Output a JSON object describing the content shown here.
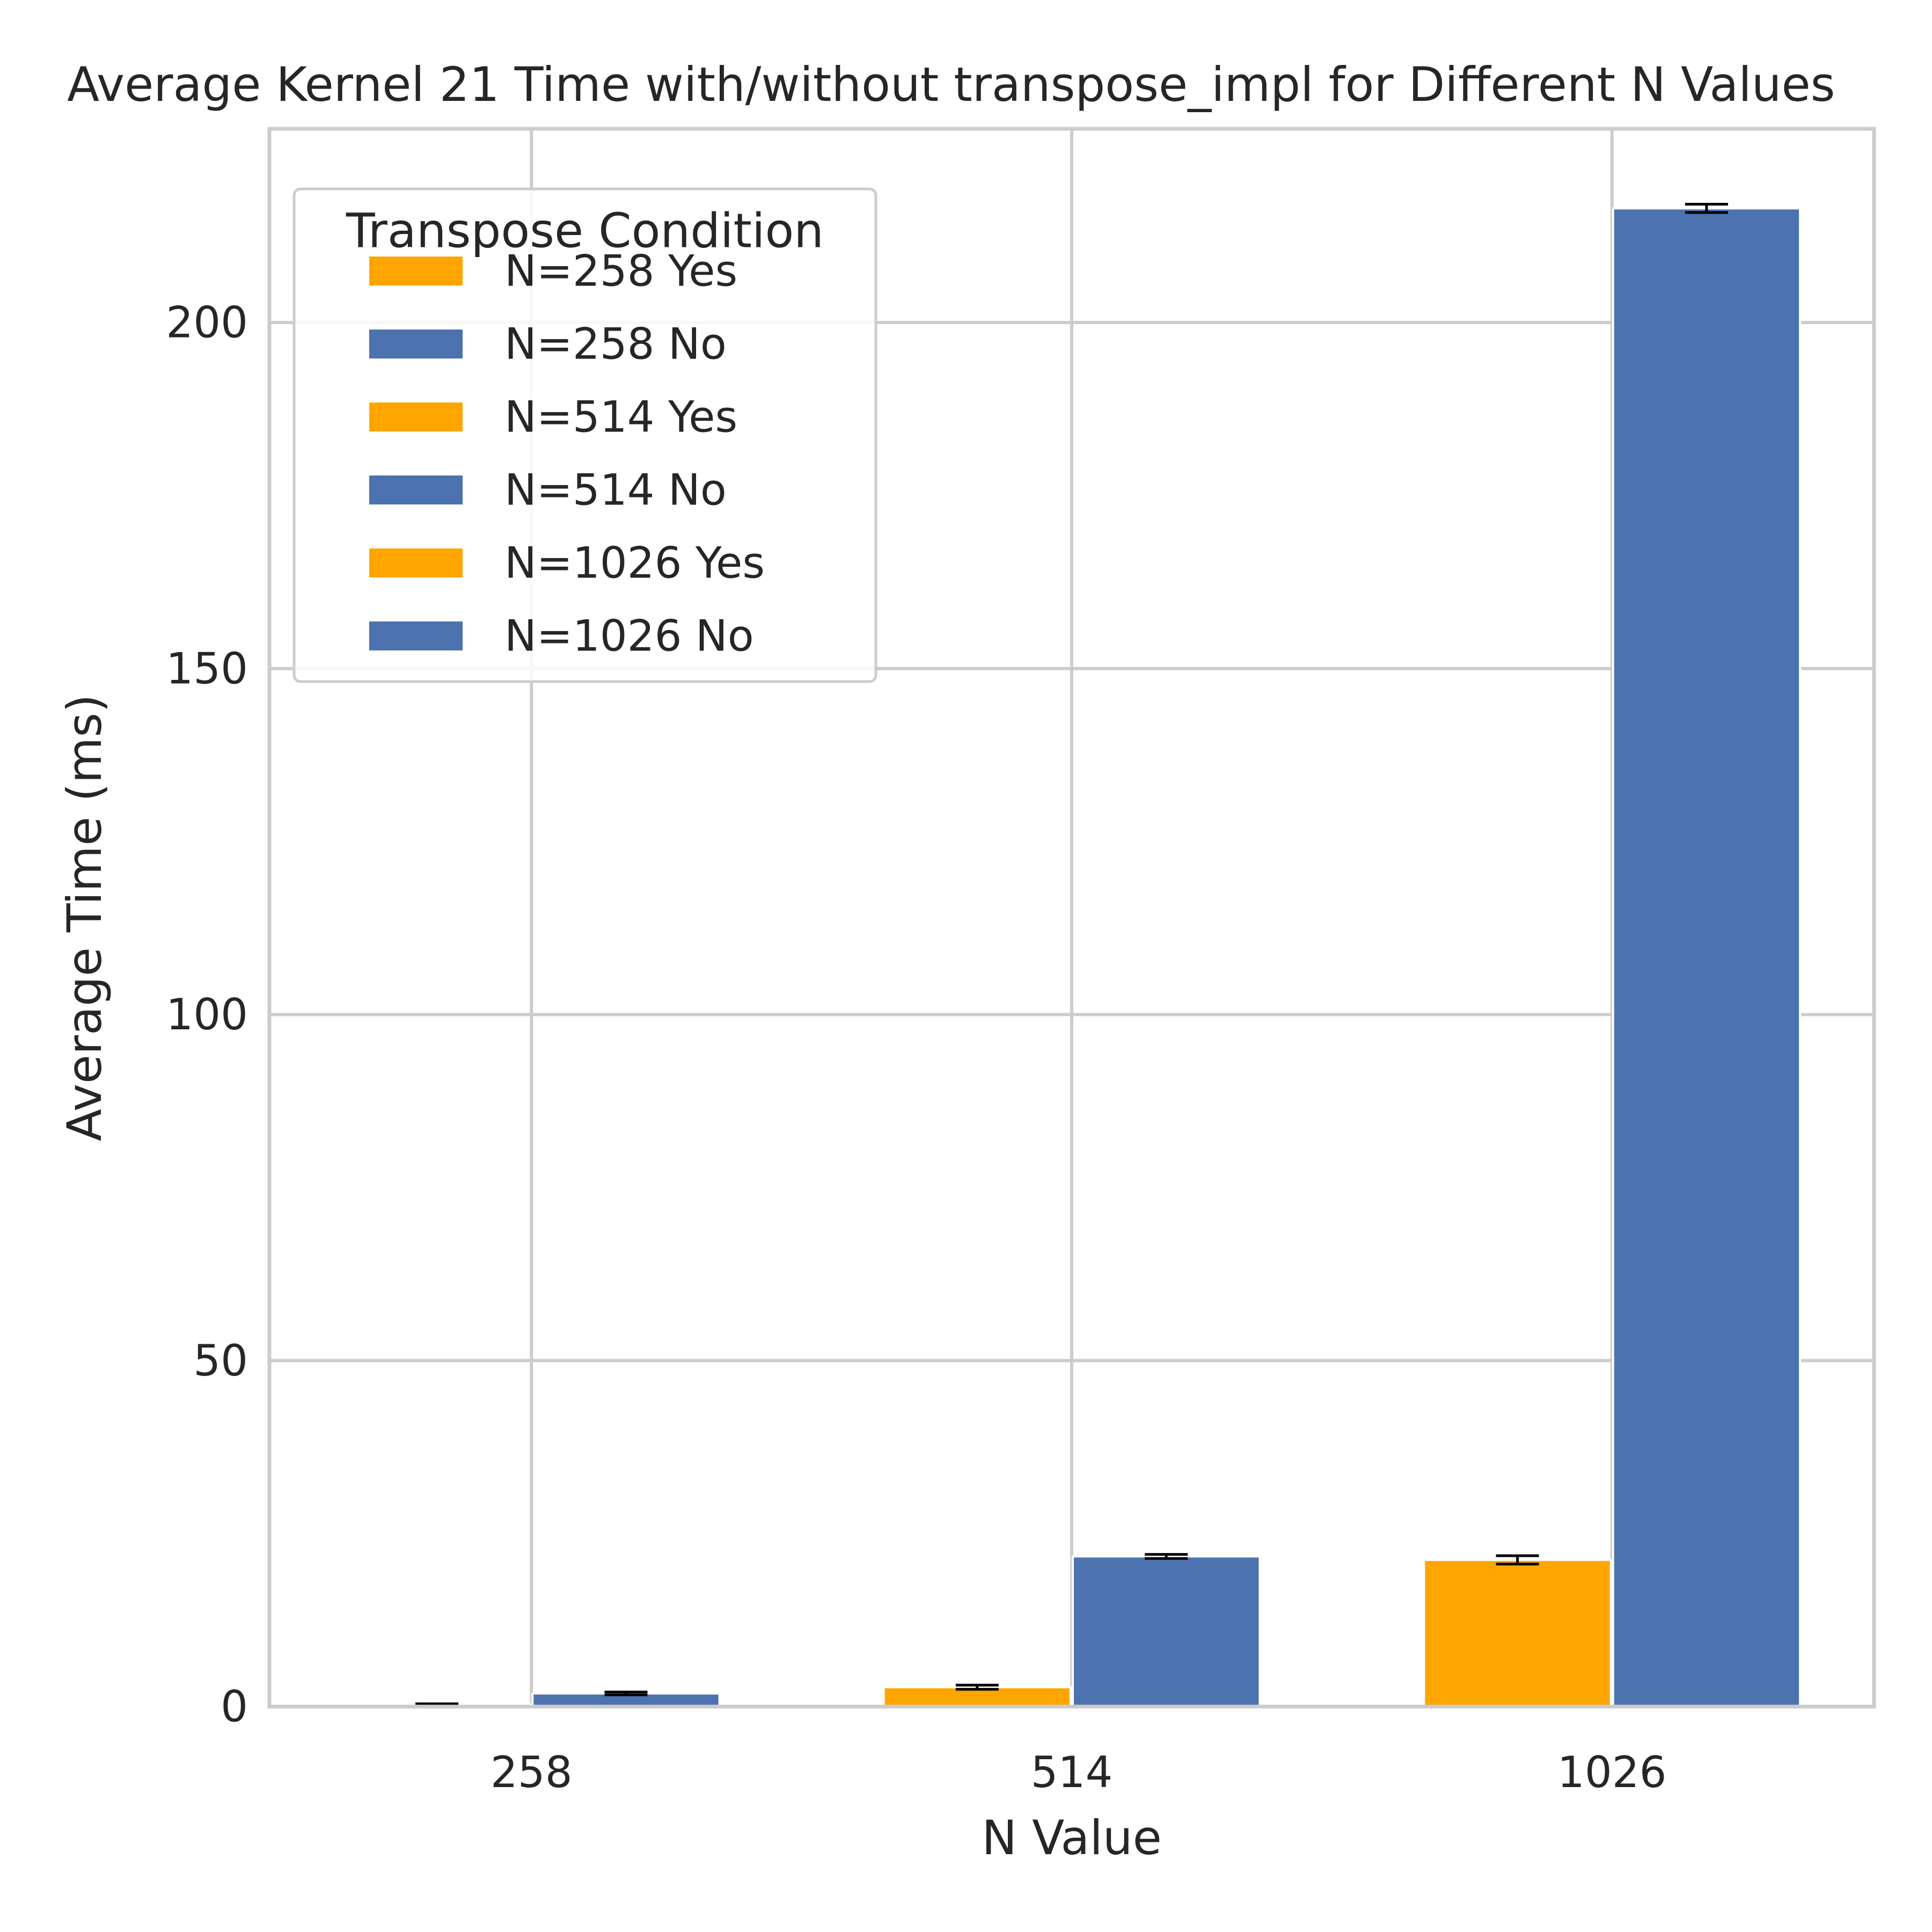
{
  "chart_data": {
    "type": "bar",
    "title": "Average Kernel 21 Time with/without transpose_impl for Different N Values",
    "xlabel": "N Value",
    "ylabel": "Average Time (ms)",
    "categories": [
      "258",
      "514",
      "1026"
    ],
    "ylim": [
      0,
      228
    ],
    "yticks": [
      0,
      50,
      100,
      150,
      200
    ],
    "grid": true,
    "legend": {
      "title": "Transpose Condition",
      "placement": "top-left",
      "entries": [
        {
          "label": "N=258 Yes",
          "color": "#ffa500"
        },
        {
          "label": "N=258 No",
          "color": "#4c72b0"
        },
        {
          "label": "N=514 Yes",
          "color": "#ffa500"
        },
        {
          "label": "N=514 No",
          "color": "#4c72b0"
        },
        {
          "label": "N=1026 Yes",
          "color": "#ffa500"
        },
        {
          "label": "N=1026 No",
          "color": "#4c72b0"
        }
      ]
    },
    "series": [
      {
        "name": "Yes",
        "color": "#ffa500",
        "values": [
          0.3,
          2.8,
          21.2
        ],
        "errors": [
          0.1,
          0.3,
          0.6
        ]
      },
      {
        "name": "No",
        "color": "#4c72b0",
        "values": [
          1.9,
          21.7,
          216.5
        ],
        "errors": [
          0.2,
          0.3,
          0.6
        ]
      }
    ]
  }
}
